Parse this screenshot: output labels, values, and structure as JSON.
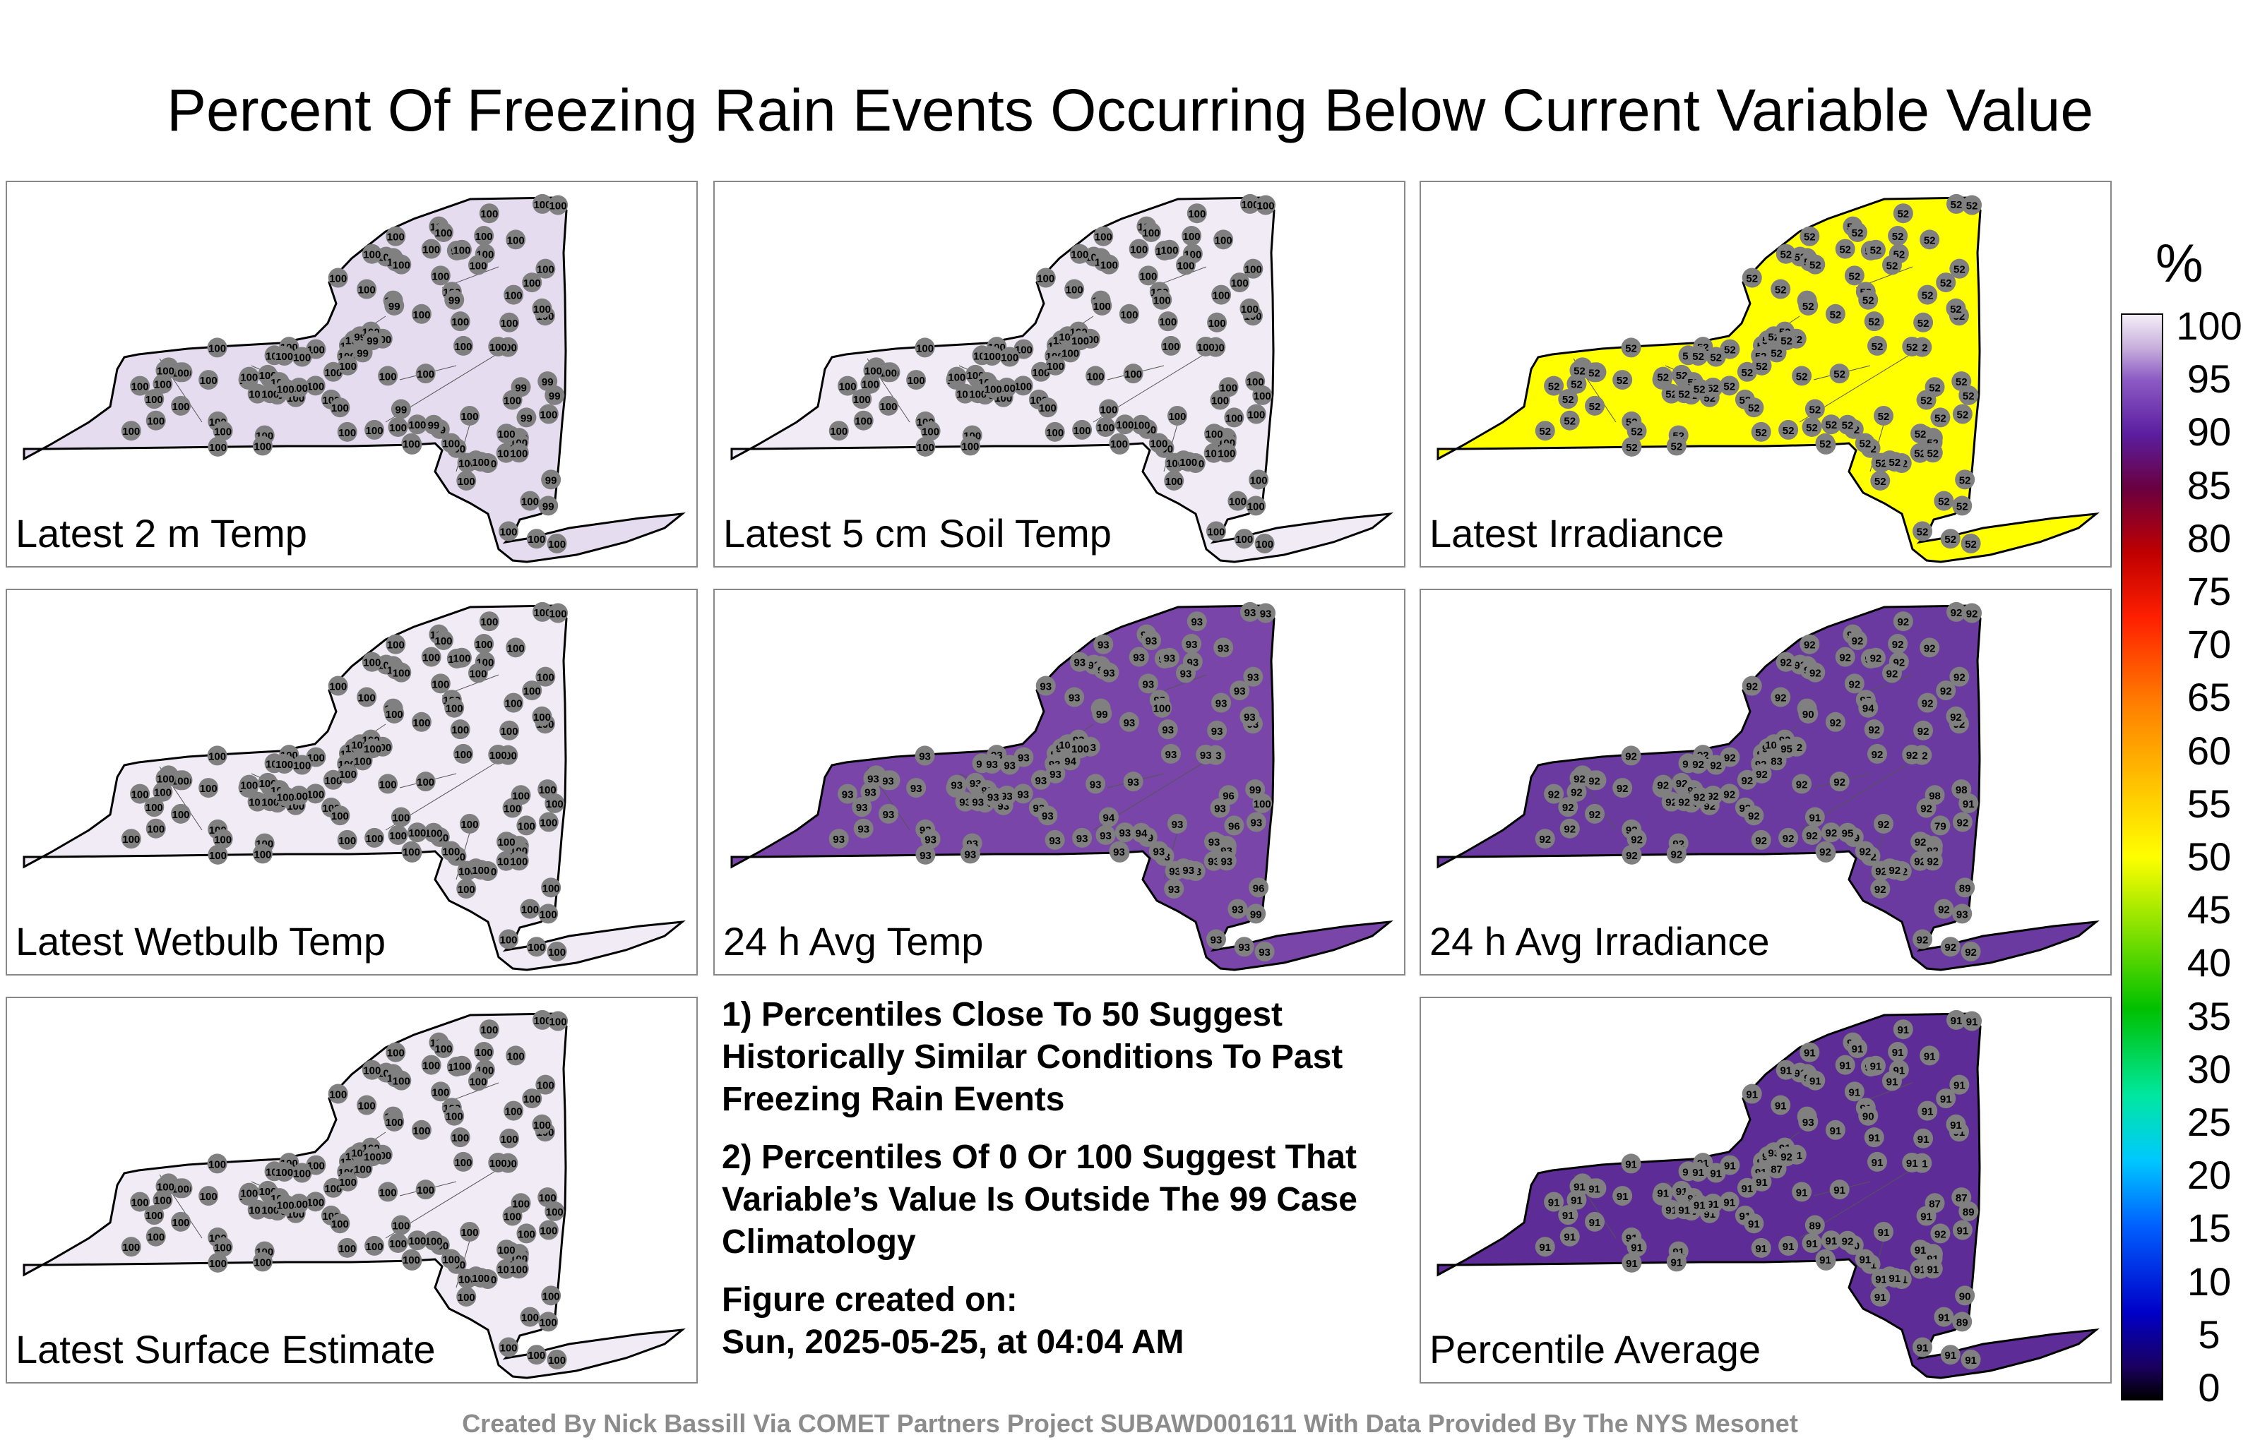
{
  "title": "Percent Of Freezing Rain Events Occurring Below Current Variable Value",
  "panels": [
    {
      "label": "Latest 2 m Temp",
      "fill": "#e6dcf0",
      "station_value": "100",
      "odd_values": [
        {
          "v": "99"
        }
      ]
    },
    {
      "label": "Latest 5 cm Soil Temp",
      "fill": "#f0ebf5",
      "station_value": "100",
      "odd_values": []
    },
    {
      "label": "Latest Irradiance",
      "fill": "#ffff00",
      "station_value": "52",
      "odd_values": []
    },
    {
      "label": "Latest Wetbulb Temp",
      "fill": "#f0ebf5",
      "station_value": "100",
      "odd_values": []
    },
    {
      "label": "24 h Avg Temp",
      "fill": "#7a45a8",
      "station_value": "93",
      "odd_values": [
        {
          "v": "96"
        },
        {
          "v": "94"
        },
        {
          "v": "99"
        },
        {
          "v": "100"
        }
      ]
    },
    {
      "label": "24 h Avg Irradiance",
      "fill": "#6a3aa0",
      "station_value": "92",
      "odd_values": [
        {
          "v": "89"
        },
        {
          "v": "91"
        },
        {
          "v": "79"
        },
        {
          "v": "83"
        },
        {
          "v": "90"
        },
        {
          "v": "94"
        },
        {
          "v": "93"
        },
        {
          "v": "95"
        },
        {
          "v": "98"
        },
        {
          "v": "100"
        }
      ]
    },
    {
      "label": "Latest Surface Estimate",
      "fill": "#f0ebf5",
      "station_value": "100",
      "odd_values": []
    },
    {
      "label": "Percentile Average",
      "fill": "#5e2c96",
      "station_value": "91",
      "odd_values": [
        {
          "v": "90"
        },
        {
          "v": "89"
        },
        {
          "v": "92"
        },
        {
          "v": "87"
        },
        {
          "v": "93"
        }
      ]
    }
  ],
  "notes": [
    "1) Percentiles Close To 50 Suggest Historically Similar Conditions To Past Freezing Rain Events",
    "2) Percentiles Of 0 Or 100 Suggest That Variable’s Value Is Outside The 99 Case Climatology",
    "Figure created on:\nSun, 2025-05-25, at 04:04 AM"
  ],
  "colorbar": {
    "unit": "%",
    "ticks": [
      "100",
      "95",
      "90",
      "85",
      "80",
      "75",
      "70",
      "65",
      "60",
      "55",
      "50",
      "45",
      "40",
      "35",
      "30",
      "25",
      "20",
      "15",
      "10",
      "5",
      "0"
    ]
  },
  "credit": "Created By Nick Bassill Via COMET Partners Project SUBAWD001611 With Data Provided By The NYS Mesonet"
}
